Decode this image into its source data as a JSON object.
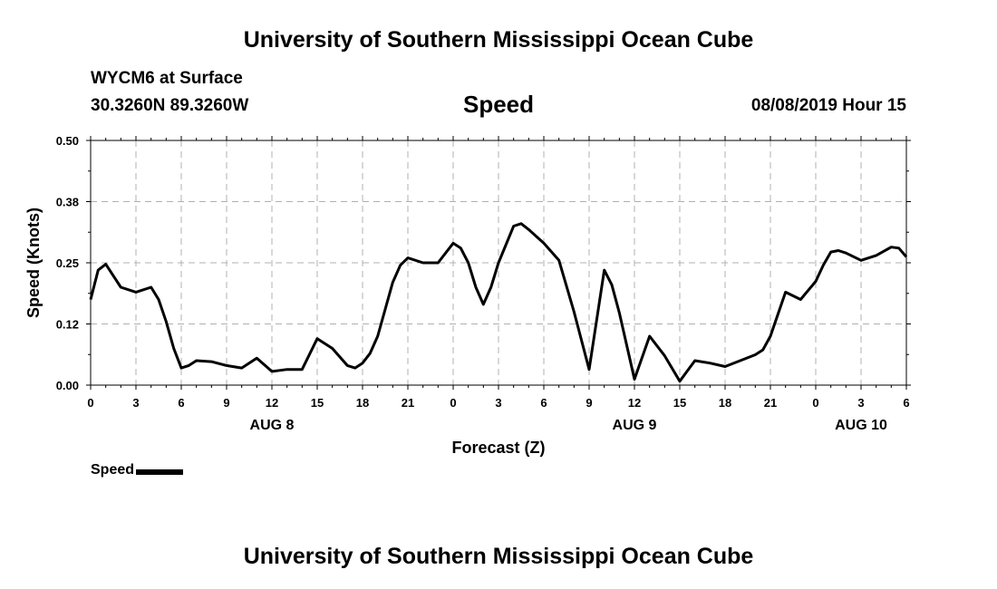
{
  "header": {
    "top_title": "University of Southern Mississippi Ocean Cube",
    "station": "WYCM6 at Surface",
    "coords": "30.3260N 89.3260W",
    "variable": "Speed",
    "datetime": "08/08/2019 Hour 15",
    "bottom_title": "University of Southern Mississippi Ocean Cube"
  },
  "colors": {
    "line": "#000000",
    "grid": "#b0b0b0",
    "background": "#ffffff"
  },
  "chart_data": {
    "type": "line",
    "xlabel": "Forecast (Z)",
    "ylabel": "Speed (Knots)",
    "ylim": [
      0,
      0.5
    ],
    "xlim": [
      0,
      54
    ],
    "y_ticks": [
      {
        "value": 0,
        "label": "0.00"
      },
      {
        "value": 0.125,
        "label": "0.12"
      },
      {
        "value": 0.25,
        "label": "0.25"
      },
      {
        "value": 0.375,
        "label": "0.38"
      },
      {
        "value": 0.5,
        "label": "0.50"
      }
    ],
    "x_ticks": [
      {
        "hour": 0,
        "label": "0"
      },
      {
        "hour": 3,
        "label": "3"
      },
      {
        "hour": 6,
        "label": "6"
      },
      {
        "hour": 9,
        "label": "9"
      },
      {
        "hour": 12,
        "label": "12"
      },
      {
        "hour": 15,
        "label": "15"
      },
      {
        "hour": 18,
        "label": "18"
      },
      {
        "hour": 21,
        "label": "21"
      },
      {
        "hour": 24,
        "label": "0"
      },
      {
        "hour": 27,
        "label": "3"
      },
      {
        "hour": 30,
        "label": "6"
      },
      {
        "hour": 33,
        "label": "9"
      },
      {
        "hour": 36,
        "label": "12"
      },
      {
        "hour": 39,
        "label": "15"
      },
      {
        "hour": 42,
        "label": "18"
      },
      {
        "hour": 45,
        "label": "21"
      },
      {
        "hour": 48,
        "label": "0"
      },
      {
        "hour": 51,
        "label": "3"
      },
      {
        "hour": 54,
        "label": "6"
      }
    ],
    "day_labels": [
      {
        "hour": 12,
        "label": "AUG 8"
      },
      {
        "hour": 36,
        "label": "AUG 9"
      },
      {
        "hour": 51,
        "label": "AUG 10"
      }
    ],
    "grid": true,
    "legend": {
      "position": "bottom-left",
      "entries": [
        "Speed"
      ]
    },
    "series": [
      {
        "name": "Speed",
        "x": [
          0,
          0.5,
          1,
          2,
          3,
          4,
          4.5,
          5,
          5.5,
          6,
          6.5,
          7,
          8,
          9,
          10,
          11,
          12,
          12.5,
          13,
          14,
          15,
          16,
          17,
          17.5,
          18,
          18.5,
          19,
          20,
          20.5,
          21,
          22,
          23,
          24,
          24.5,
          25,
          25.5,
          26,
          26.5,
          27,
          28,
          28.5,
          29,
          30,
          31,
          32,
          33,
          34,
          34.5,
          35,
          36,
          37,
          38,
          39,
          40,
          41,
          42,
          43,
          44,
          44.5,
          45,
          46,
          47,
          48,
          48.5,
          49,
          49.5,
          50,
          51,
          52,
          53,
          53.5,
          54
        ],
        "values": [
          0.175,
          0.235,
          0.247,
          0.2,
          0.19,
          0.2,
          0.175,
          0.13,
          0.075,
          0.035,
          0.04,
          0.05,
          0.048,
          0.04,
          0.035,
          0.055,
          0.028,
          0.03,
          0.032,
          0.032,
          0.095,
          0.075,
          0.04,
          0.035,
          0.045,
          0.065,
          0.1,
          0.21,
          0.245,
          0.26,
          0.25,
          0.25,
          0.29,
          0.28,
          0.25,
          0.2,
          0.165,
          0.2,
          0.25,
          0.325,
          0.33,
          0.318,
          0.29,
          0.255,
          0.15,
          0.032,
          0.235,
          0.205,
          0.148,
          0.012,
          0.1,
          0.06,
          0.008,
          0.05,
          0.045,
          0.038,
          0.05,
          0.062,
          0.072,
          0.1,
          0.19,
          0.175,
          0.212,
          0.245,
          0.272,
          0.275,
          0.27,
          0.255,
          0.265,
          0.282,
          0.28,
          0.262
        ]
      }
    ]
  }
}
